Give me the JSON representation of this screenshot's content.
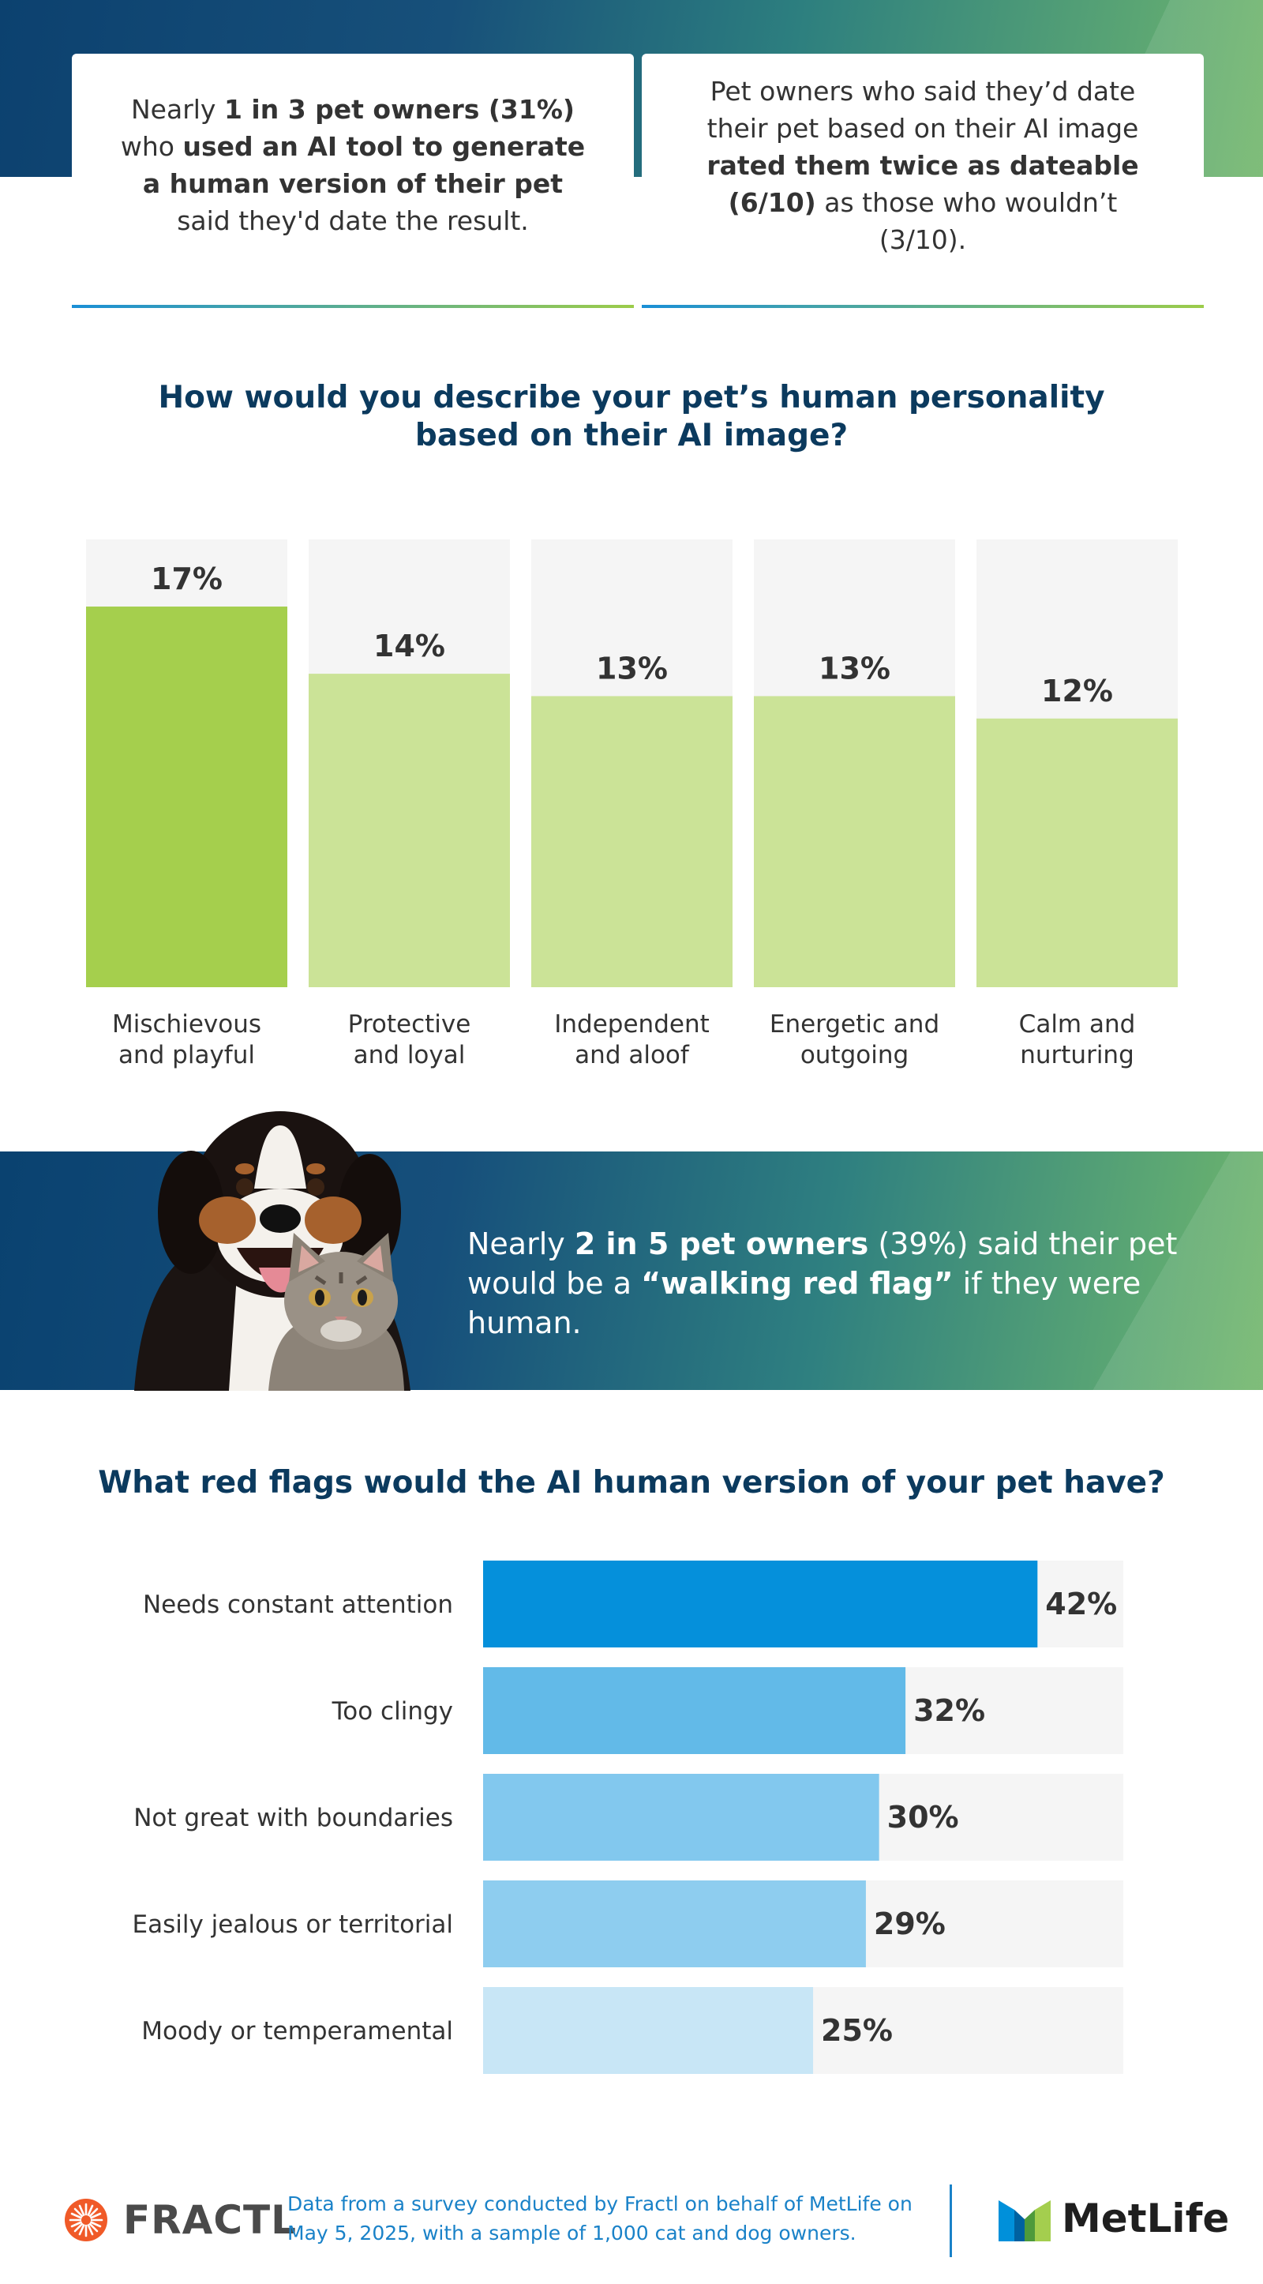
{
  "header": {
    "card_left": {
      "p1": "Nearly ",
      "b1": "1 in 3 pet owners (31%)",
      "p2": " who ",
      "b2": "used an AI tool to generate a human version of their pet",
      "p3": " said they'd date the result."
    },
    "card_right": {
      "p1": "Pet owners who said they’d date their pet based on their AI image ",
      "b1": "rated them twice as dateable (6/10)",
      "p2": " as those who wouldn’t (3/10)."
    }
  },
  "personality": {
    "title": "How would you describe your pet’s human personality based on their AI image?"
  },
  "banner": {
    "p1": "Nearly ",
    "b1": "2 in 5 pet owners",
    "p2": " (39%) said their pet would be a ",
    "b2": "“walking red flag”",
    "p3": " if they were human."
  },
  "redflags": {
    "title": "What red flags would the AI human version of your pet have?"
  },
  "chart_data": [
    {
      "type": "bar",
      "orientation": "vertical",
      "title": "How would you describe your pet’s human personality based on their AI image?",
      "categories": [
        [
          "Mischievous",
          "and playful"
        ],
        [
          "Protective",
          "and loyal"
        ],
        [
          "Independent",
          "and aloof"
        ],
        [
          "Energetic and",
          "outgoing"
        ],
        [
          "Calm and",
          "nurturing"
        ]
      ],
      "values": [
        17,
        14,
        13,
        13,
        12
      ],
      "value_labels": [
        "17%",
        "14%",
        "13%",
        "13%",
        "12%"
      ],
      "ylim": [
        0,
        20
      ],
      "colors": [
        "#a5cf4d",
        "#cbe397",
        "#cbe397",
        "#cbe397",
        "#cbe397"
      ],
      "track_color": "#f5f5f5",
      "grid": false
    },
    {
      "type": "bar",
      "orientation": "horizontal",
      "title": "What red flags would the AI human version of your pet have?",
      "categories": [
        "Needs constant attention",
        "Too clingy",
        "Not great with boundaries",
        "Easily jealous or territorial",
        "Moody or temperamental"
      ],
      "values": [
        42,
        32,
        30,
        29,
        25
      ],
      "value_labels": [
        "42%",
        "32%",
        "30%",
        "29%",
        "25%"
      ],
      "xlim": [
        0,
        48.5
      ],
      "colors": [
        "#0590db",
        "#62bae8",
        "#82c8ee",
        "#8ecdef",
        "#c8e6f6"
      ],
      "track_color": "#f5f5f5",
      "grid": false
    }
  ],
  "footer": {
    "fractl": "FRACTL",
    "note": "Data from a survey conducted by Fractl on behalf of MetLife on May 5, 2025, with a sample of 1,000 cat and dog owners.",
    "metlife": "MetLife",
    "fractl_icon": "sunburst-logo-icon",
    "metlife_icon": "metlife-m-logo-icon"
  }
}
